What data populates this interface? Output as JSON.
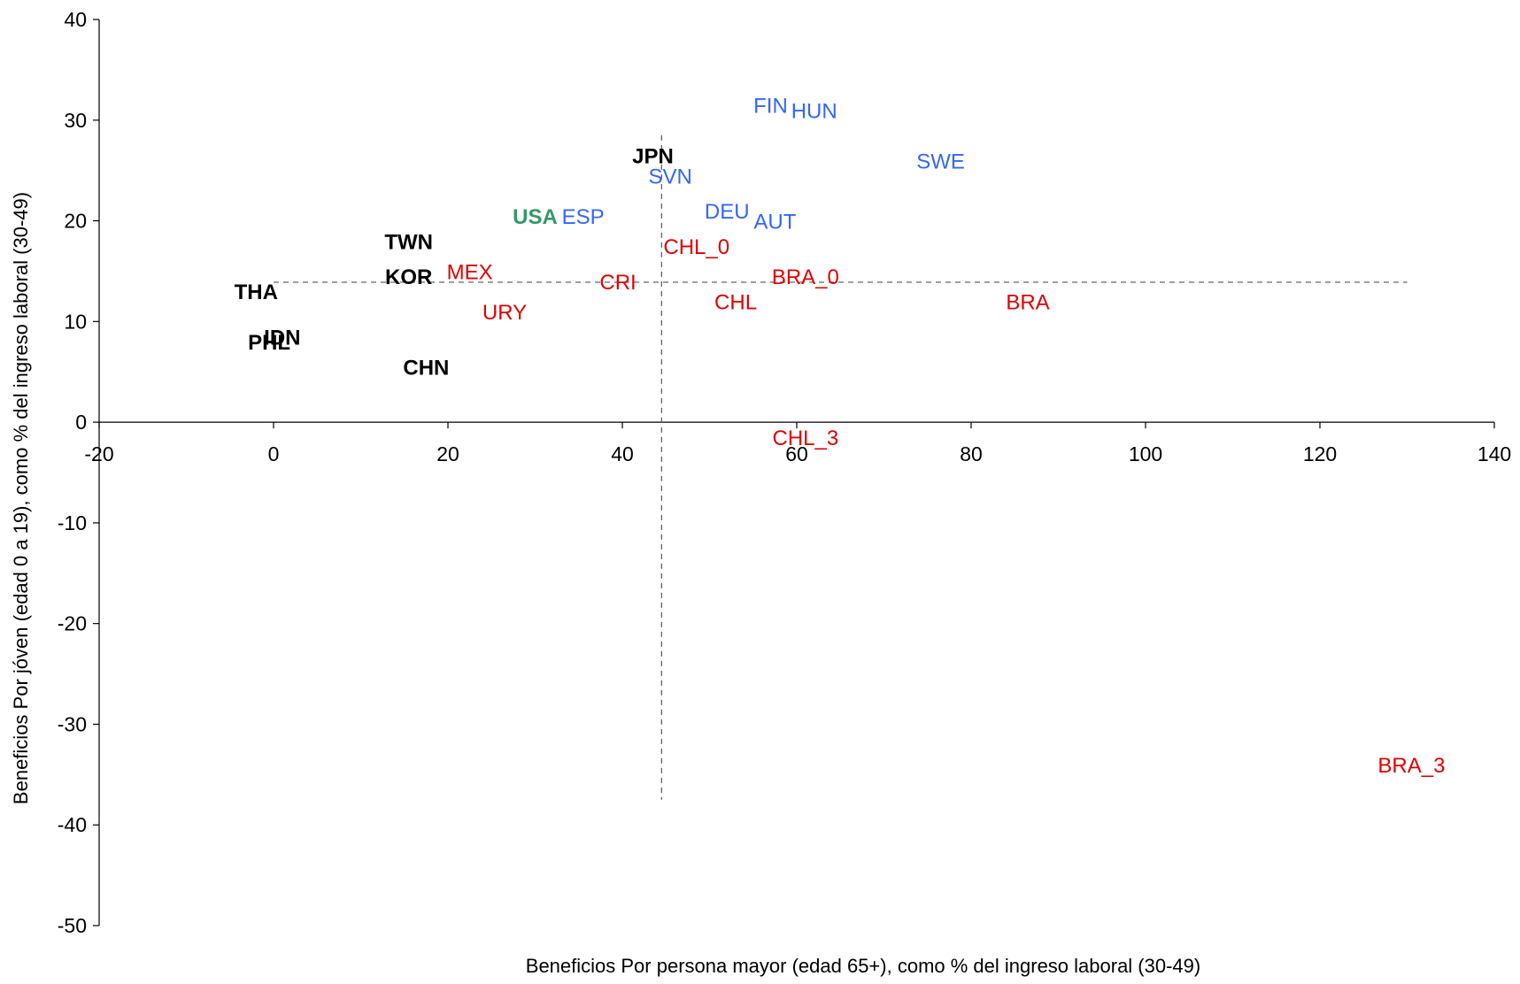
{
  "chart_data": {
    "type": "scatter",
    "title": "",
    "xlabel": "Beneficios Por persona mayor (edad 65+), como % del ingreso laboral (30-49)",
    "ylabel": "Beneficios Por jóven (edad 0 a 19), como % del ingreso laboral (30-49)",
    "xlim": [
      -20,
      140
    ],
    "ylim": [
      -50,
      40
    ],
    "xticks": [
      -20,
      0,
      20,
      40,
      60,
      80,
      100,
      120,
      140
    ],
    "yticks": [
      -50,
      -40,
      -30,
      -20,
      -10,
      0,
      10,
      20,
      30,
      40
    ],
    "grid": false,
    "reference_lines": {
      "x": 44.5,
      "y": 13.9
    },
    "colors": {
      "black": "#000000",
      "blue": "#3366ff",
      "green": "#339966",
      "red": "#e00000"
    },
    "points": [
      {
        "label": "JPN",
        "x": 43.5,
        "y": 26.5,
        "color": "black",
        "bold": true
      },
      {
        "label": "TWN",
        "x": 15.5,
        "y": 18.0,
        "color": "black",
        "bold": true
      },
      {
        "label": "KOR",
        "x": 15.5,
        "y": 14.5,
        "color": "black",
        "bold": true
      },
      {
        "label": "THA",
        "x": -2.0,
        "y": 13.0,
        "color": "black",
        "bold": true
      },
      {
        "label": "PHL",
        "x": -0.5,
        "y": 8.0,
        "color": "black",
        "bold": true
      },
      {
        "label": "IDN",
        "x": 1.0,
        "y": 8.5,
        "color": "black",
        "bold": true
      },
      {
        "label": "CHN",
        "x": 17.5,
        "y": 5.5,
        "color": "black",
        "bold": true
      },
      {
        "label": "USA",
        "x": 30.0,
        "y": 20.5,
        "color": "green",
        "bold": true
      },
      {
        "label": "ESP",
        "x": 35.5,
        "y": 20.5,
        "color": "blue",
        "bold": false
      },
      {
        "label": "SVN",
        "x": 45.5,
        "y": 24.5,
        "color": "blue",
        "bold": false
      },
      {
        "label": "FIN",
        "x": 57.0,
        "y": 31.5,
        "color": "blue",
        "bold": false
      },
      {
        "label": "HUN",
        "x": 62.0,
        "y": 31.0,
        "color": "blue",
        "bold": false
      },
      {
        "label": "SWE",
        "x": 76.5,
        "y": 26.0,
        "color": "blue",
        "bold": false
      },
      {
        "label": "DEU",
        "x": 52.0,
        "y": 21.0,
        "color": "blue",
        "bold": false
      },
      {
        "label": "AUT",
        "x": 57.5,
        "y": 20.0,
        "color": "blue",
        "bold": false
      },
      {
        "label": "CHL_0",
        "x": 48.5,
        "y": 17.5,
        "color": "red",
        "bold": false
      },
      {
        "label": "MEX",
        "x": 22.5,
        "y": 15.0,
        "color": "red",
        "bold": false
      },
      {
        "label": "CRI",
        "x": 39.5,
        "y": 14.0,
        "color": "red",
        "bold": false
      },
      {
        "label": "BRA_0",
        "x": 61.0,
        "y": 14.5,
        "color": "red",
        "bold": false
      },
      {
        "label": "BRA",
        "x": 86.5,
        "y": 12.0,
        "color": "red",
        "bold": false
      },
      {
        "label": "CHL",
        "x": 53.0,
        "y": 12.0,
        "color": "red",
        "bold": false
      },
      {
        "label": "URY",
        "x": 26.5,
        "y": 11.0,
        "color": "red",
        "bold": false
      },
      {
        "label": "CHL_3",
        "x": 61.0,
        "y": -1.5,
        "color": "red",
        "bold": false
      },
      {
        "label": "BRA_3",
        "x": 130.5,
        "y": -34.0,
        "color": "red",
        "bold": false
      }
    ]
  }
}
